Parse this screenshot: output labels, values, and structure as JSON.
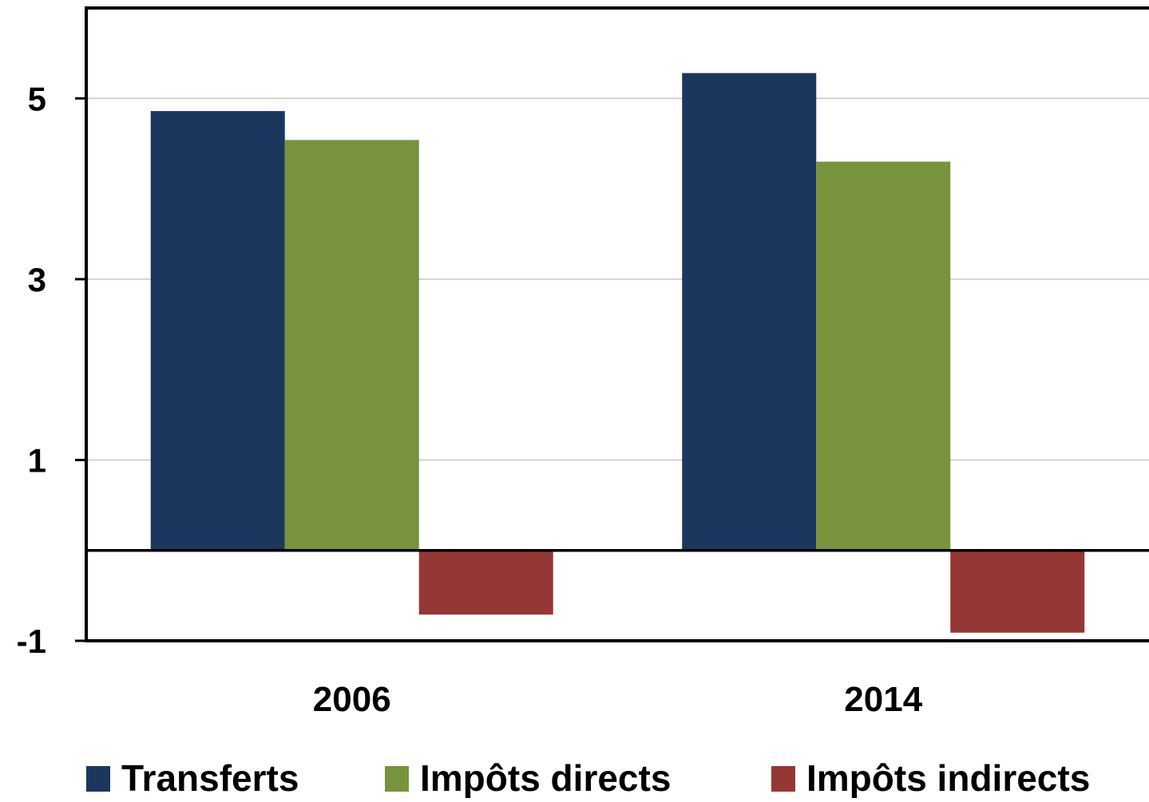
{
  "chart_data": {
    "type": "bar",
    "categories": [
      "2006",
      "2014"
    ],
    "series": [
      {
        "name": "Transferts",
        "values": [
          4.86,
          5.28
        ],
        "color": "#1c375e"
      },
      {
        "name": "Impôts directs",
        "values": [
          4.54,
          4.3
        ],
        "color": "#77933c"
      },
      {
        "name": "Impôts indirects",
        "values": [
          -0.71,
          -0.91
        ],
        "color": "#953735"
      }
    ],
    "ylim": [
      -1,
      6
    ],
    "yticks": [
      -1,
      1,
      3,
      5
    ],
    "ytick_labels": [
      "-1",
      "1",
      "3",
      "5"
    ],
    "grid": true,
    "legend_position": "bottom",
    "title": "",
    "xlabel": "",
    "ylabel": ""
  }
}
